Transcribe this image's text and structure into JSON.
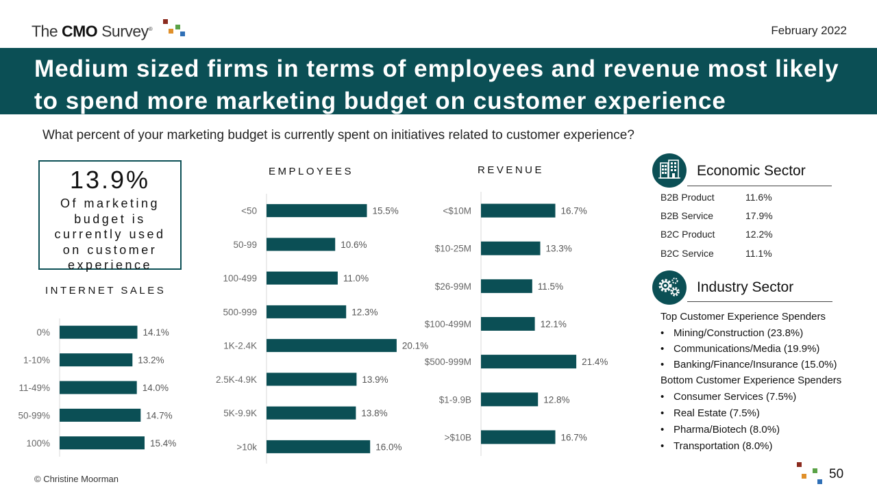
{
  "header": {
    "logo_prefix": "The ",
    "logo_bold": "CMO",
    "logo_suffix": " Survey",
    "logo_reg": "®",
    "date": "February 2022"
  },
  "title": "Medium sized firms in terms of employees and revenue most likely to spend more marketing budget on customer experience",
  "question": "What percent of your marketing budget is currently spent on initiatives related to customer experience?",
  "kpi": {
    "value": "13.9%",
    "text": "Of marketing budget is currently used on customer experience"
  },
  "colors": {
    "accent": "#0b4f55",
    "logo_red": "#8b2a1e",
    "logo_orange": "#e0902a",
    "logo_green": "#5aa246",
    "logo_blue": "#2f6fb6"
  },
  "chart_data": [
    {
      "type": "bar",
      "orientation": "horizontal",
      "title": "INTERNET SALES",
      "categories": [
        "0%",
        "1-10%",
        "11-49%",
        "50-99%",
        "100%"
      ],
      "values": [
        14.1,
        13.2,
        14.0,
        14.7,
        15.4
      ],
      "labels": [
        "14.1%",
        "13.2%",
        "14.0%",
        "14.7%",
        "15.4%"
      ],
      "xlim": [
        0,
        25
      ]
    },
    {
      "type": "bar",
      "orientation": "horizontal",
      "title": "EMPLOYEES",
      "categories": [
        "<50",
        "50-99",
        "100-499",
        "500-999",
        "1K-2.4K",
        "2.5K-4.9K",
        "5K-9.9K",
        ">10k"
      ],
      "values": [
        15.5,
        10.6,
        11.0,
        12.3,
        20.1,
        13.9,
        13.8,
        16.0
      ],
      "labels": [
        "15.5%",
        "10.6%",
        "11.0%",
        "12.3%",
        "20.1%",
        "13.9%",
        "13.8%",
        "16.0%"
      ],
      "xlim": [
        0,
        25
      ]
    },
    {
      "type": "bar",
      "orientation": "horizontal",
      "title": "REVENUE",
      "categories": [
        "<$10M",
        "$10-25M",
        "$26-99M",
        "$100-499M",
        "$500-999M",
        "$1-9.9B",
        ">$10B"
      ],
      "values": [
        16.7,
        13.3,
        11.5,
        12.1,
        21.4,
        12.8,
        16.7
      ],
      "labels": [
        "16.7%",
        "13.3%",
        "11.5%",
        "12.1%",
        "21.4%",
        "12.8%",
        "16.7%"
      ],
      "xlim": [
        0,
        25
      ]
    }
  ],
  "economic_sector": {
    "icon": "buildings-icon",
    "title": "Economic Sector",
    "rows": [
      {
        "label": "B2B Product",
        "value": "11.6%"
      },
      {
        "label": "B2B Service",
        "value": "17.9%"
      },
      {
        "label": "B2C Product",
        "value": "12.2%"
      },
      {
        "label": "B2C Service",
        "value": "11.1%"
      }
    ]
  },
  "industry_sector": {
    "icon": "gears-icon",
    "title": "Industry Sector",
    "top_heading": "Top Customer Experience Spenders",
    "top_items": [
      "Mining/Construction (23.8%)",
      "Communications/Media (19.9%)",
      "Banking/Finance/Insurance (15.0%)"
    ],
    "bottom_heading": "Bottom Customer Experience Spenders",
    "bottom_items": [
      "Consumer Services (7.5%)",
      "Real Estate (7.5%)",
      "Pharma/Biotech (8.0%)",
      "Transportation (8.0%)"
    ],
    "bullet": "•"
  },
  "footer": {
    "copyright": "© Christine Moorman",
    "page": "50"
  }
}
